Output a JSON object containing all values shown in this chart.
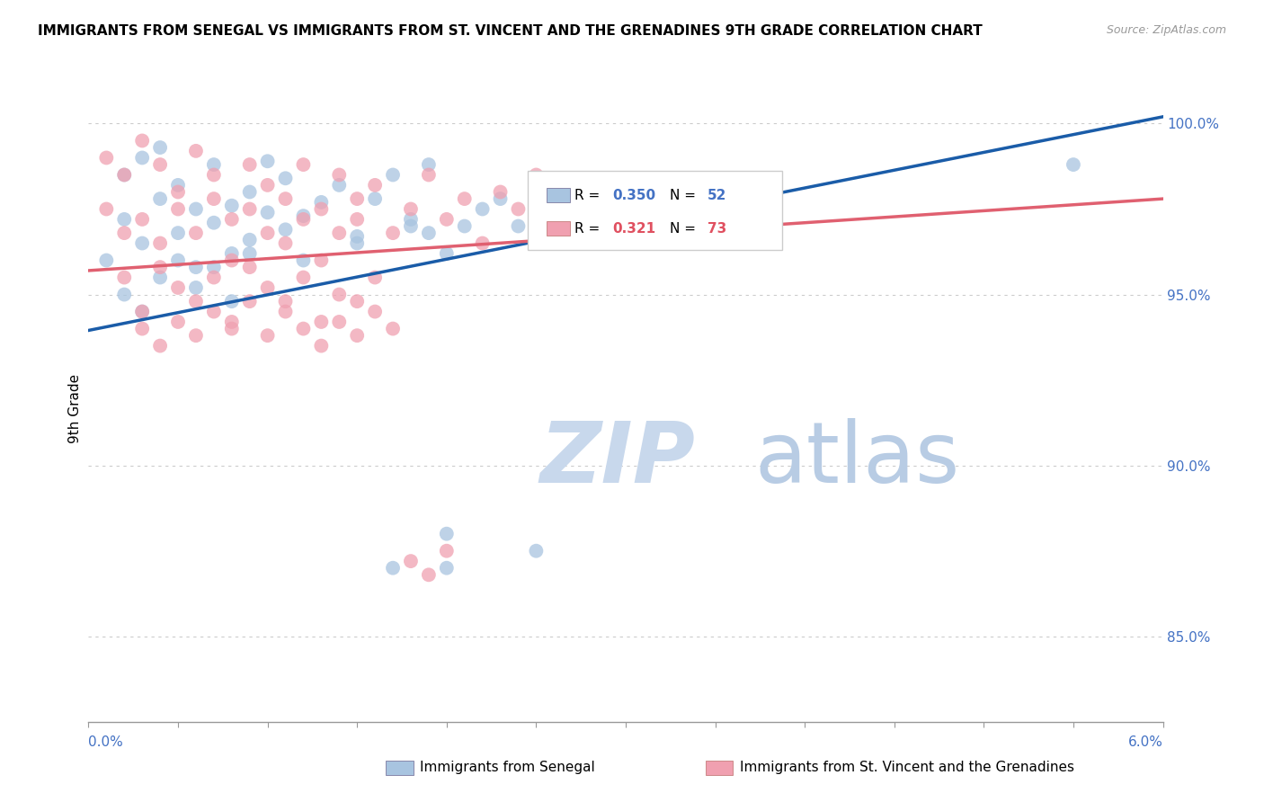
{
  "title": "IMMIGRANTS FROM SENEGAL VS IMMIGRANTS FROM ST. VINCENT AND THE GRENADINES 9TH GRADE CORRELATION CHART",
  "source": "Source: ZipAtlas.com",
  "ylabel": "9th Grade",
  "right_yticks": [
    0.85,
    0.9,
    0.95,
    1.0
  ],
  "right_yticklabels": [
    "85.0%",
    "90.0%",
    "95.0%",
    "100.0%"
  ],
  "blue_color": "#a8c4e0",
  "blue_line_color": "#1a5ca8",
  "pink_color": "#f0a0b0",
  "pink_line_color": "#e06070",
  "watermark_color": "#d8e4f0",
  "xlim": [
    0.0,
    0.06
  ],
  "ylim": [
    0.825,
    1.008
  ],
  "blue_trend": [
    0.9395,
    1.002
  ],
  "pink_trend": [
    0.957,
    0.978
  ],
  "blue_scatter_x": [
    0.001,
    0.002,
    0.002,
    0.003,
    0.003,
    0.004,
    0.004,
    0.005,
    0.005,
    0.006,
    0.006,
    0.007,
    0.007,
    0.008,
    0.008,
    0.009,
    0.009,
    0.01,
    0.01,
    0.011,
    0.011,
    0.012,
    0.012,
    0.013,
    0.014,
    0.015,
    0.016,
    0.017,
    0.018,
    0.019,
    0.002,
    0.003,
    0.004,
    0.005,
    0.006,
    0.007,
    0.008,
    0.009,
    0.021,
    0.025,
    0.015,
    0.018,
    0.019,
    0.022,
    0.02,
    0.023,
    0.024,
    0.02,
    0.025,
    0.02,
    0.017,
    0.055
  ],
  "blue_scatter_y": [
    0.96,
    0.972,
    0.985,
    0.99,
    0.965,
    0.978,
    0.993,
    0.968,
    0.982,
    0.975,
    0.958,
    0.971,
    0.988,
    0.962,
    0.976,
    0.98,
    0.966,
    0.974,
    0.989,
    0.969,
    0.984,
    0.973,
    0.96,
    0.977,
    0.982,
    0.965,
    0.978,
    0.985,
    0.97,
    0.988,
    0.95,
    0.945,
    0.955,
    0.96,
    0.952,
    0.958,
    0.948,
    0.962,
    0.97,
    0.965,
    0.967,
    0.972,
    0.968,
    0.975,
    0.962,
    0.978,
    0.97,
    0.88,
    0.875,
    0.87,
    0.87,
    0.988
  ],
  "pink_scatter_x": [
    0.001,
    0.001,
    0.002,
    0.002,
    0.003,
    0.003,
    0.004,
    0.004,
    0.005,
    0.005,
    0.006,
    0.006,
    0.007,
    0.007,
    0.008,
    0.008,
    0.009,
    0.009,
    0.01,
    0.01,
    0.011,
    0.011,
    0.012,
    0.012,
    0.013,
    0.013,
    0.014,
    0.014,
    0.015,
    0.015,
    0.016,
    0.017,
    0.018,
    0.019,
    0.02,
    0.021,
    0.022,
    0.023,
    0.024,
    0.025,
    0.002,
    0.003,
    0.004,
    0.005,
    0.006,
    0.007,
    0.008,
    0.009,
    0.01,
    0.011,
    0.012,
    0.013,
    0.014,
    0.015,
    0.016,
    0.003,
    0.004,
    0.005,
    0.006,
    0.007,
    0.008,
    0.009,
    0.01,
    0.011,
    0.012,
    0.013,
    0.014,
    0.015,
    0.016,
    0.017,
    0.018,
    0.019,
    0.02
  ],
  "pink_scatter_y": [
    0.99,
    0.975,
    0.985,
    0.968,
    0.995,
    0.972,
    0.988,
    0.965,
    0.98,
    0.975,
    0.992,
    0.968,
    0.978,
    0.985,
    0.972,
    0.96,
    0.988,
    0.975,
    0.968,
    0.982,
    0.978,
    0.965,
    0.972,
    0.988,
    0.975,
    0.96,
    0.985,
    0.968,
    0.978,
    0.972,
    0.982,
    0.968,
    0.975,
    0.985,
    0.972,
    0.978,
    0.965,
    0.98,
    0.975,
    0.985,
    0.955,
    0.945,
    0.958,
    0.952,
    0.948,
    0.955,
    0.942,
    0.958,
    0.952,
    0.948,
    0.955,
    0.942,
    0.95,
    0.948,
    0.955,
    0.94,
    0.935,
    0.942,
    0.938,
    0.945,
    0.94,
    0.948,
    0.938,
    0.945,
    0.94,
    0.935,
    0.942,
    0.938,
    0.945,
    0.94,
    0.872,
    0.868,
    0.875
  ]
}
